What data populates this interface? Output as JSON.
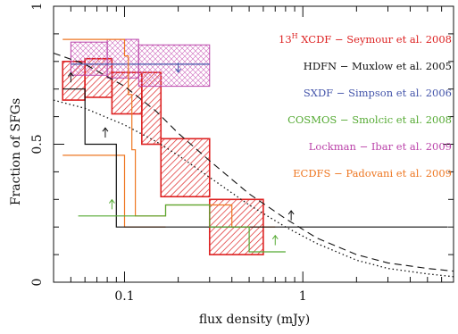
{
  "chart_data": {
    "type": "line",
    "title": "",
    "xlabel": "flux density (mJy)",
    "ylabel": "Fraction of SFGs",
    "x_scale": "log",
    "xlim": [
      0.04,
      7.0
    ],
    "ylim": [
      0,
      1
    ],
    "x_ticks": [
      {
        "value": 0.1,
        "label": "0.1"
      },
      {
        "value": 1,
        "label": "1"
      }
    ],
    "y_ticks": [
      {
        "value": 0,
        "label": "0"
      },
      {
        "value": 0.5,
        "label": "0.5"
      },
      {
        "value": 1,
        "label": "1"
      }
    ],
    "legend": {
      "placement": "top-right",
      "entries": [
        {
          "key": "xcdf",
          "sup": "H",
          "prefix": "13",
          "label": " XCDF − Seymour et al. 2008",
          "color": "#dd2222"
        },
        {
          "key": "hdfn",
          "sup": "",
          "prefix": "",
          "label": "HDFN − Muxlow et al. 2005",
          "color": "#111111"
        },
        {
          "key": "sxdf",
          "sup": "",
          "prefix": "",
          "label": "SXDF − Simpson et al. 2006",
          "color": "#4455aa"
        },
        {
          "key": "cosmos",
          "sup": "",
          "prefix": "",
          "label": "COSMOS − Smolcic et al. 2008",
          "color": "#55aa33"
        },
        {
          "key": "lockman",
          "sup": "",
          "prefix": "",
          "label": "Lockman − Ibar et al. 2009",
          "color": "#bb44aa"
        },
        {
          "key": "ecdfs",
          "sup": "",
          "prefix": "",
          "label": "ECDFS − Padovani et al. 2009",
          "color": "#ee7722"
        }
      ]
    },
    "series": [
      {
        "key": "xcdf",
        "style": "hatched-boxes",
        "color": "#dd2222",
        "bins": [
          {
            "x0": 0.045,
            "x1": 0.06,
            "y0": 0.66,
            "y1": 0.8
          },
          {
            "x0": 0.06,
            "x1": 0.085,
            "y0": 0.67,
            "y1": 0.81
          },
          {
            "x0": 0.085,
            "x1": 0.125,
            "y0": 0.61,
            "y1": 0.76
          },
          {
            "x0": 0.125,
            "x1": 0.16,
            "y0": 0.5,
            "y1": 0.76
          },
          {
            "x0": 0.16,
            "x1": 0.3,
            "y0": 0.31,
            "y1": 0.52
          },
          {
            "x0": 0.3,
            "x1": 0.6,
            "y0": 0.1,
            "y1": 0.3
          }
        ]
      },
      {
        "key": "lockman",
        "style": "crosshatched-band",
        "color": "#bb44aa",
        "bins": [
          {
            "x0": 0.05,
            "x1": 0.08,
            "y0": 0.75,
            "y1": 0.87
          },
          {
            "x0": 0.08,
            "x1": 0.12,
            "y0": 0.74,
            "y1": 0.88
          },
          {
            "x0": 0.12,
            "x1": 0.3,
            "y0": 0.71,
            "y1": 0.86
          }
        ]
      },
      {
        "key": "sxdf",
        "style": "step",
        "color": "#4455aa",
        "points": [
          [
            0.05,
            0.79
          ],
          [
            0.3,
            0.79
          ]
        ],
        "arrows": [
          {
            "x": 0.2,
            "y": 0.79,
            "dir": "down"
          }
        ]
      },
      {
        "key": "ecdfs",
        "style": "step",
        "color": "#ee7722",
        "points": [
          [
            0.045,
            0.88
          ],
          [
            0.1,
            0.88
          ],
          [
            0.1,
            0.82
          ],
          [
            0.105,
            0.82
          ],
          [
            0.105,
            0.68
          ],
          [
            0.11,
            0.68
          ],
          [
            0.11,
            0.48
          ],
          [
            0.115,
            0.48
          ],
          [
            0.115,
            0.24
          ],
          [
            0.17,
            0.24
          ],
          [
            0.17,
            0.28
          ],
          [
            0.4,
            0.28
          ],
          [
            0.4,
            0.2
          ],
          [
            0.7,
            0.2
          ]
        ],
        "extra": [
          [
            0.045,
            0.46
          ],
          [
            0.1,
            0.46
          ],
          [
            0.1,
            0.2
          ],
          [
            0.17,
            0.2
          ]
        ]
      },
      {
        "key": "hdfn",
        "style": "step",
        "color": "#111111",
        "points": [
          [
            0.045,
            0.7
          ],
          [
            0.06,
            0.7
          ],
          [
            0.06,
            0.5
          ],
          [
            0.09,
            0.5
          ],
          [
            0.09,
            0.2
          ],
          [
            6.5,
            0.2
          ]
        ],
        "arrows": [
          {
            "x": 0.05,
            "y": 0.73,
            "dir": "up"
          },
          {
            "x": 0.078,
            "y": 0.53,
            "dir": "up"
          },
          {
            "x": 0.86,
            "y": 0.23,
            "dir": "up"
          }
        ]
      },
      {
        "key": "cosmos",
        "style": "step",
        "color": "#55aa33",
        "points": [
          [
            0.055,
            0.24
          ],
          [
            0.17,
            0.24
          ],
          [
            0.17,
            0.28
          ],
          [
            0.3,
            0.28
          ],
          [
            0.3,
            0.2
          ],
          [
            0.5,
            0.2
          ],
          [
            0.5,
            0.11
          ],
          [
            0.8,
            0.11
          ]
        ],
        "arrows": [
          {
            "x": 0.085,
            "y": 0.27,
            "dir": "up"
          },
          {
            "x": 0.7,
            "y": 0.14,
            "dir": "up"
          }
        ]
      },
      {
        "key": "model-dashed",
        "style": "dashed",
        "color": "#111111",
        "points": [
          [
            0.04,
            0.83
          ],
          [
            0.06,
            0.79
          ],
          [
            0.1,
            0.71
          ],
          [
            0.15,
            0.62
          ],
          [
            0.2,
            0.54
          ],
          [
            0.3,
            0.44
          ],
          [
            0.5,
            0.32
          ],
          [
            0.8,
            0.23
          ],
          [
            1.2,
            0.16
          ],
          [
            2.0,
            0.1
          ],
          [
            3.0,
            0.07
          ],
          [
            5.0,
            0.05
          ],
          [
            7.0,
            0.04
          ]
        ]
      },
      {
        "key": "model-dotted",
        "style": "dotted",
        "color": "#111111",
        "points": [
          [
            0.04,
            0.66
          ],
          [
            0.06,
            0.63
          ],
          [
            0.1,
            0.57
          ],
          [
            0.15,
            0.51
          ],
          [
            0.2,
            0.46
          ],
          [
            0.3,
            0.38
          ],
          [
            0.5,
            0.28
          ],
          [
            0.8,
            0.2
          ],
          [
            1.2,
            0.14
          ],
          [
            2.0,
            0.08
          ],
          [
            3.0,
            0.05
          ],
          [
            5.0,
            0.03
          ],
          [
            7.0,
            0.02
          ]
        ]
      }
    ]
  }
}
